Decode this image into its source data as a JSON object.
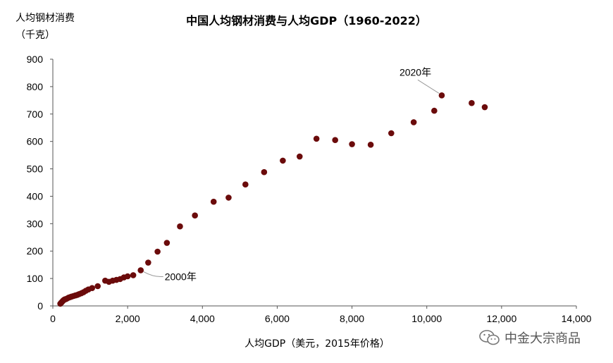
{
  "chart_data": {
    "type": "scatter",
    "title": "中国人均钢材消费与人均GDP（1960-2022）",
    "ylabel_line1": "人均钢材消费",
    "ylabel_line2": "（千克）",
    "xlabel": "人均GDP（美元，2015年价格）",
    "xlim": [
      0,
      14000
    ],
    "ylim": [
      0,
      900
    ],
    "x_ticks": [
      0,
      2000,
      4000,
      6000,
      8000,
      10000,
      12000,
      14000
    ],
    "x_tick_labels": [
      "0",
      "2,000",
      "4,000",
      "6,000",
      "8,000",
      "10,000",
      "12,000",
      "14,000"
    ],
    "y_ticks": [
      0,
      100,
      200,
      300,
      400,
      500,
      600,
      700,
      800,
      900
    ],
    "y_tick_labels": [
      "0",
      "100",
      "200",
      "300",
      "400",
      "500",
      "600",
      "700",
      "800",
      "900"
    ],
    "grid": false,
    "legend": "none",
    "marker_color": "#6b0b0b",
    "series": [
      {
        "points": [
          [
            200,
            8
          ],
          [
            220,
            11
          ],
          [
            240,
            14
          ],
          [
            260,
            17
          ],
          [
            280,
            20
          ],
          [
            300,
            22
          ],
          [
            320,
            24
          ],
          [
            350,
            25
          ],
          [
            380,
            27
          ],
          [
            420,
            30
          ],
          [
            460,
            32
          ],
          [
            500,
            34
          ],
          [
            550,
            36
          ],
          [
            600,
            38
          ],
          [
            650,
            40
          ],
          [
            700,
            43
          ],
          [
            760,
            46
          ],
          [
            820,
            50
          ],
          [
            880,
            55
          ],
          [
            950,
            60
          ],
          [
            1050,
            65
          ],
          [
            1200,
            72
          ],
          [
            1400,
            92
          ],
          [
            1500,
            88
          ],
          [
            1600,
            92
          ],
          [
            1700,
            95
          ],
          [
            1800,
            98
          ],
          [
            1900,
            104
          ],
          [
            2000,
            108
          ],
          [
            2150,
            112
          ],
          [
            2350,
            130
          ],
          [
            2550,
            158
          ],
          [
            2800,
            198
          ],
          [
            3050,
            230
          ],
          [
            3400,
            290
          ],
          [
            3800,
            330
          ],
          [
            4300,
            380
          ],
          [
            4700,
            395
          ],
          [
            5150,
            443
          ],
          [
            5650,
            488
          ],
          [
            6150,
            530
          ],
          [
            6600,
            545
          ],
          [
            7050,
            610
          ],
          [
            7550,
            605
          ],
          [
            8000,
            590
          ],
          [
            8500,
            588
          ],
          [
            9050,
            630
          ],
          [
            9650,
            670
          ],
          [
            10200,
            712
          ],
          [
            10400,
            768
          ],
          [
            11200,
            740
          ],
          [
            11550,
            725
          ]
        ]
      }
    ],
    "annotations": [
      {
        "text": "2000年",
        "x": 2350,
        "y": 130
      },
      {
        "text": "2020年",
        "x": 10400,
        "y": 768
      }
    ]
  },
  "watermark": {
    "text": "中金大宗商品",
    "icon": "wechat-icon"
  }
}
